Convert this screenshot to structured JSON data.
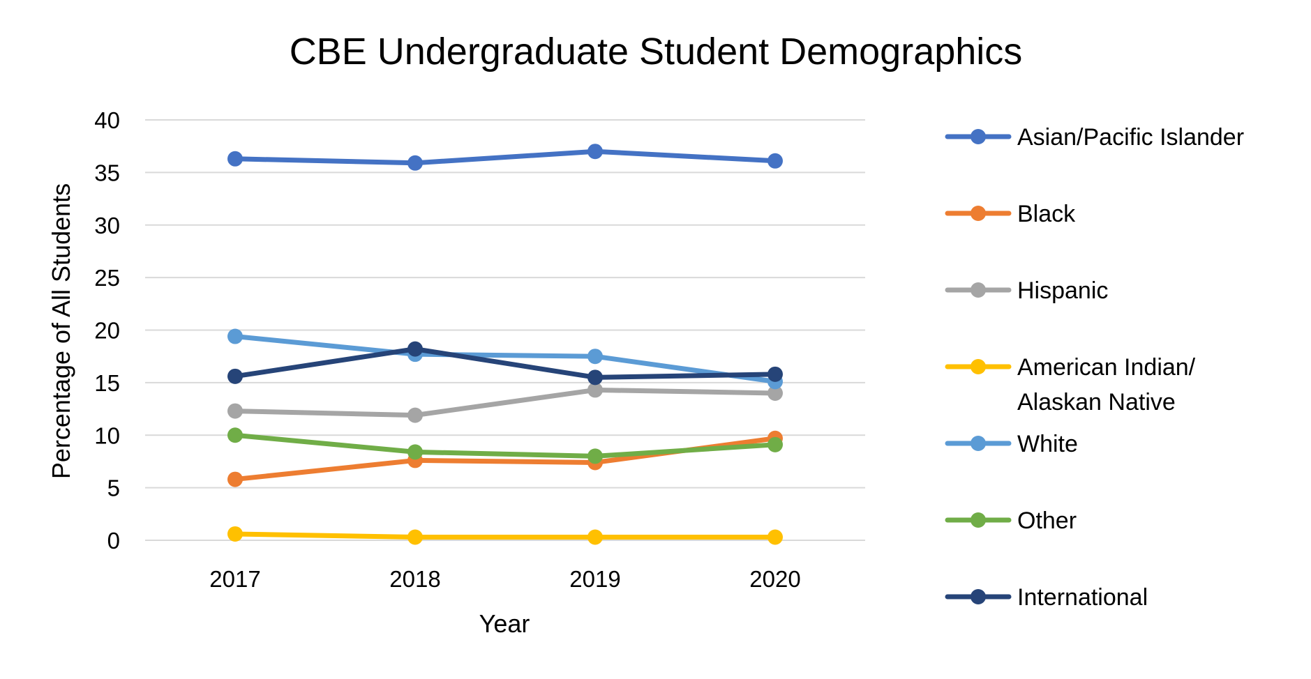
{
  "chart_data": {
    "type": "line",
    "title": "CBE Undergraduate Student Demographics",
    "xlabel": "Year",
    "ylabel": "Percentage of All Students",
    "categories": [
      "2017",
      "2018",
      "2019",
      "2020"
    ],
    "ylim": [
      0,
      40
    ],
    "yticks": [
      0,
      5,
      10,
      15,
      20,
      25,
      30,
      35,
      40
    ],
    "grid": true,
    "legend_position": "right",
    "series": [
      {
        "name": "Asian/Pacific Islander",
        "color": "#4472C4",
        "values": [
          36.3,
          35.9,
          37.0,
          36.1
        ]
      },
      {
        "name": "Black",
        "color": "#ED7D31",
        "values": [
          5.8,
          7.6,
          7.4,
          9.7
        ]
      },
      {
        "name": "Hispanic",
        "color": "#A5A5A5",
        "values": [
          12.3,
          11.9,
          14.3,
          14.0
        ]
      },
      {
        "name": "American Indian/ Alaskan Native",
        "legend_lines": [
          "American Indian/",
          "Alaskan Native"
        ],
        "color": "#FFC000",
        "values": [
          0.6,
          0.3,
          0.3,
          0.3
        ]
      },
      {
        "name": "White",
        "color": "#5B9BD5",
        "values": [
          19.4,
          17.7,
          17.5,
          15.1
        ]
      },
      {
        "name": "Other",
        "color": "#70AD47",
        "values": [
          10.0,
          8.4,
          8.0,
          9.1
        ]
      },
      {
        "name": "International",
        "color": "#264478",
        "values": [
          15.6,
          18.2,
          15.5,
          15.8
        ]
      }
    ],
    "gridline_color": "#D9D9D9"
  }
}
